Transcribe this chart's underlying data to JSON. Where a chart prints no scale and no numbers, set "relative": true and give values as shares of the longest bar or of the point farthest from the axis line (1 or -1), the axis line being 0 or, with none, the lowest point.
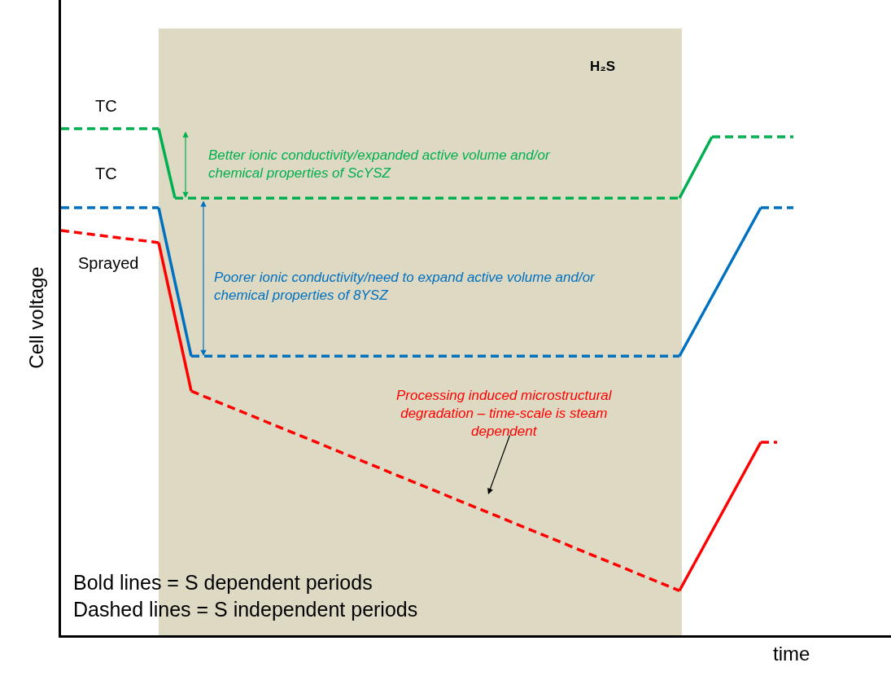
{
  "chart_data": {
    "type": "line",
    "relative": true,
    "xlabel": "time",
    "ylabel": "Cell voltage",
    "grid": false,
    "marker": "none",
    "categories": [
      null,
      null,
      null,
      null,
      null,
      null,
      null,
      null,
      null,
      null,
      null,
      null,
      null,
      null,
      null,
      null,
      null,
      null,
      null,
      null,
      null,
      null,
      null,
      null,
      null,
      null,
      null,
      null,
      null,
      null,
      null,
      null,
      null,
      null,
      null,
      null,
      null,
      null,
      null,
      null,
      null,
      null,
      null,
      null,
      null,
      null
    ],
    "series": [
      {
        "color": "#00b050",
        "line_style": "dashed",
        "values": [
          1.0,
          null,
          null,
          null,
          null,
          null,
          1.0,
          null,
          null,
          null,
          null,
          null,
          null,
          null,
          null,
          null,
          null,
          null,
          null,
          null,
          null,
          null,
          null,
          null,
          null,
          null,
          null,
          null,
          null,
          null,
          null,
          null,
          null,
          null,
          null,
          null,
          null,
          null,
          null,
          null,
          null,
          null,
          null,
          null,
          null,
          null
        ]
      },
      {
        "color": "#00b050",
        "line_style": "solid",
        "values": [
          null,
          null,
          null,
          null,
          null,
          null,
          1.0,
          0.863,
          null,
          null,
          null,
          null,
          null,
          null,
          null,
          null,
          null,
          null,
          null,
          null,
          null,
          null,
          null,
          null,
          null,
          null,
          null,
          null,
          null,
          null,
          null,
          null,
          null,
          null,
          null,
          null,
          null,
          null,
          null,
          null,
          null,
          null,
          null,
          null,
          null,
          null
        ]
      },
      {
        "color": "#00b050",
        "line_style": "dashed",
        "values": [
          null,
          null,
          null,
          null,
          null,
          null,
          null,
          0.863,
          null,
          null,
          null,
          null,
          null,
          null,
          null,
          null,
          null,
          null,
          null,
          null,
          null,
          null,
          null,
          null,
          null,
          null,
          null,
          null,
          null,
          null,
          null,
          null,
          null,
          null,
          null,
          null,
          null,
          null,
          0.863,
          null,
          null,
          null,
          null,
          null,
          null,
          null
        ]
      },
      {
        "color": "#00b050",
        "line_style": "solid",
        "values": [
          null,
          null,
          null,
          null,
          null,
          null,
          null,
          null,
          null,
          null,
          null,
          null,
          null,
          null,
          null,
          null,
          null,
          null,
          null,
          null,
          null,
          null,
          null,
          null,
          null,
          null,
          null,
          null,
          null,
          null,
          null,
          null,
          null,
          null,
          null,
          null,
          null,
          null,
          0.863,
          null,
          0.984,
          null,
          null,
          null,
          null,
          null
        ]
      },
      {
        "color": "#00b050",
        "line_style": "dashed",
        "values": [
          null,
          null,
          null,
          null,
          null,
          null,
          null,
          null,
          null,
          null,
          null,
          null,
          null,
          null,
          null,
          null,
          null,
          null,
          null,
          null,
          null,
          null,
          null,
          null,
          null,
          null,
          null,
          null,
          null,
          null,
          null,
          null,
          null,
          null,
          null,
          null,
          null,
          null,
          null,
          null,
          0.984,
          null,
          null,
          null,
          null,
          0.984
        ]
      },
      {
        "color": "#0070c0",
        "line_style": "dashed",
        "values": [
          0.844,
          null,
          null,
          null,
          null,
          null,
          0.844,
          null,
          null,
          null,
          null,
          null,
          null,
          null,
          null,
          null,
          null,
          null,
          null,
          null,
          null,
          null,
          null,
          null,
          null,
          null,
          null,
          null,
          null,
          null,
          null,
          null,
          null,
          null,
          null,
          null,
          null,
          null,
          null,
          null,
          null,
          null,
          null,
          null,
          null,
          null
        ]
      },
      {
        "color": "#0070c0",
        "line_style": "solid",
        "values": [
          null,
          null,
          null,
          null,
          null,
          null,
          0.844,
          null,
          0.551,
          null,
          null,
          null,
          null,
          null,
          null,
          null,
          null,
          null,
          null,
          null,
          null,
          null,
          null,
          null,
          null,
          null,
          null,
          null,
          null,
          null,
          null,
          null,
          null,
          null,
          null,
          null,
          null,
          null,
          null,
          null,
          null,
          null,
          null,
          null,
          null,
          null
        ]
      },
      {
        "color": "#0070c0",
        "line_style": "dashed",
        "values": [
          null,
          null,
          null,
          null,
          null,
          null,
          null,
          null,
          0.551,
          null,
          null,
          null,
          null,
          null,
          null,
          null,
          null,
          null,
          null,
          null,
          null,
          null,
          null,
          null,
          null,
          null,
          null,
          null,
          null,
          null,
          null,
          null,
          null,
          null,
          null,
          null,
          null,
          null,
          0.551,
          null,
          null,
          null,
          null,
          null,
          null,
          null
        ]
      },
      {
        "color": "#0070c0",
        "line_style": "solid",
        "values": [
          null,
          null,
          null,
          null,
          null,
          null,
          null,
          null,
          null,
          null,
          null,
          null,
          null,
          null,
          null,
          null,
          null,
          null,
          null,
          null,
          null,
          null,
          null,
          null,
          null,
          null,
          null,
          null,
          null,
          null,
          null,
          null,
          null,
          null,
          null,
          null,
          null,
          null,
          0.551,
          null,
          null,
          null,
          null,
          0.844,
          null,
          null
        ]
      },
      {
        "color": "#0070c0",
        "line_style": "dashed",
        "values": [
          null,
          null,
          null,
          null,
          null,
          null,
          null,
          null,
          null,
          null,
          null,
          null,
          null,
          null,
          null,
          null,
          null,
          null,
          null,
          null,
          null,
          null,
          null,
          null,
          null,
          null,
          null,
          null,
          null,
          null,
          null,
          null,
          null,
          null,
          null,
          null,
          null,
          null,
          null,
          null,
          null,
          null,
          null,
          0.844,
          null,
          0.844
        ]
      },
      {
        "color": "#ff0000",
        "line_style": "dashed",
        "values": [
          0.799,
          null,
          null,
          null,
          null,
          null,
          0.775,
          null,
          null,
          null,
          null,
          null,
          null,
          null,
          null,
          null,
          null,
          null,
          null,
          null,
          null,
          null,
          null,
          null,
          null,
          null,
          null,
          null,
          null,
          null,
          null,
          null,
          null,
          null,
          null,
          null,
          null,
          null,
          null,
          null,
          null,
          null,
          null,
          null,
          null,
          null
        ]
      },
      {
        "color": "#ff0000",
        "line_style": "solid",
        "values": [
          null,
          null,
          null,
          null,
          null,
          null,
          0.775,
          null,
          0.482,
          null,
          null,
          null,
          null,
          null,
          null,
          null,
          null,
          null,
          null,
          null,
          null,
          null,
          null,
          null,
          null,
          null,
          null,
          null,
          null,
          null,
          null,
          null,
          null,
          null,
          null,
          null,
          null,
          null,
          null,
          null,
          null,
          null,
          null,
          null,
          null,
          null
        ]
      },
      {
        "color": "#ff0000",
        "line_style": "dashed",
        "values": [
          null,
          null,
          null,
          null,
          null,
          null,
          null,
          null,
          0.482,
          null,
          null,
          null,
          null,
          null,
          null,
          null,
          null,
          null,
          null,
          null,
          null,
          null,
          null,
          null,
          null,
          null,
          null,
          null,
          null,
          null,
          null,
          null,
          null,
          null,
          null,
          null,
          null,
          null,
          0.088,
          null,
          null,
          null,
          null,
          null,
          null,
          null
        ]
      },
      {
        "color": "#ff0000",
        "line_style": "solid",
        "values": [
          null,
          null,
          null,
          null,
          null,
          null,
          null,
          null,
          null,
          null,
          null,
          null,
          null,
          null,
          null,
          null,
          null,
          null,
          null,
          null,
          null,
          null,
          null,
          null,
          null,
          null,
          null,
          null,
          null,
          null,
          null,
          null,
          null,
          null,
          null,
          null,
          null,
          null,
          0.088,
          null,
          null,
          null,
          null,
          0.381,
          null,
          null
        ]
      },
      {
        "color": "#ff0000",
        "line_style": "dashed",
        "values": [
          null,
          null,
          null,
          null,
          null,
          null,
          null,
          null,
          null,
          null,
          null,
          null,
          null,
          null,
          null,
          null,
          null,
          null,
          null,
          null,
          null,
          null,
          null,
          null,
          null,
          null,
          null,
          null,
          null,
          null,
          null,
          null,
          null,
          null,
          null,
          null,
          null,
          null,
          null,
          null,
          null,
          null,
          null,
          0.381,
          0.381,
          null
        ]
      }
    ],
    "annotations": [
      "H₂S",
      "TC",
      "TC",
      "Sprayed",
      "Better ionic conductivity/expanded active volume and/or\nchemical properties of ScYSZ",
      "Poorer ionic conductivity/need to expand active volume and/or\nchemical properties of 8YSZ",
      "Processing induced microstructural\ndegradation – time-scale is steam\ndependent",
      "Bold lines = S dependent periods\nDashed lines = S independent periods"
    ]
  }
}
